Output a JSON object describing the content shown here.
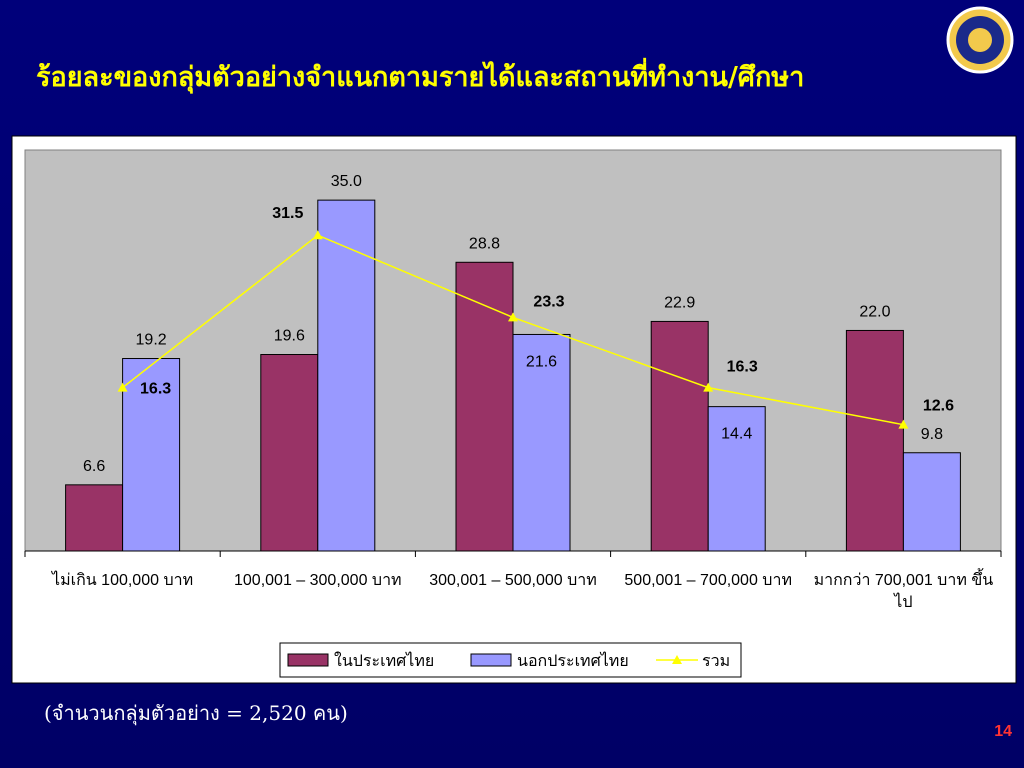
{
  "slide_title": "ร้อยละของกลุ่มตัวอย่างจำแนกตามรายได้และสถานที่ทำงาน/ศึกษา",
  "chart_data": {
    "type": "bar",
    "categories": [
      "ไม่เกิน 100,000 บาท",
      "100,001 – 300,000 บาท",
      "300,001 – 500,000 บาท",
      "500,001 – 700,000 บาท",
      "มากกว่า 700,001 บาท ขึ้นไป"
    ],
    "ylim": [
      0,
      40
    ],
    "series": [
      {
        "name": "ในประเทศไทย",
        "color": "#993366",
        "values": [
          6.6,
          19.6,
          28.8,
          22.9,
          22.0
        ],
        "value_labels": [
          "6.6",
          "19.6",
          "28.8",
          "22.9",
          "22.0"
        ]
      },
      {
        "name": "นอกประเทศไทย",
        "color": "#9999ff",
        "values": [
          19.2,
          35.0,
          21.6,
          14.4,
          9.8
        ],
        "value_labels": [
          "19.2",
          "35.0",
          "21.6",
          "14.4",
          "9.8"
        ]
      },
      {
        "name": "รวม",
        "type": "line",
        "color": "#ffff00",
        "values": [
          16.3,
          31.5,
          23.3,
          16.3,
          12.6
        ],
        "value_labels": [
          "16.3",
          "31.5",
          "23.3",
          "16.3",
          "12.6"
        ]
      }
    ]
  },
  "footnote": "(จำนวนกลุ่มตัวอย่าง = 2,520 คน)",
  "page_number": "14"
}
